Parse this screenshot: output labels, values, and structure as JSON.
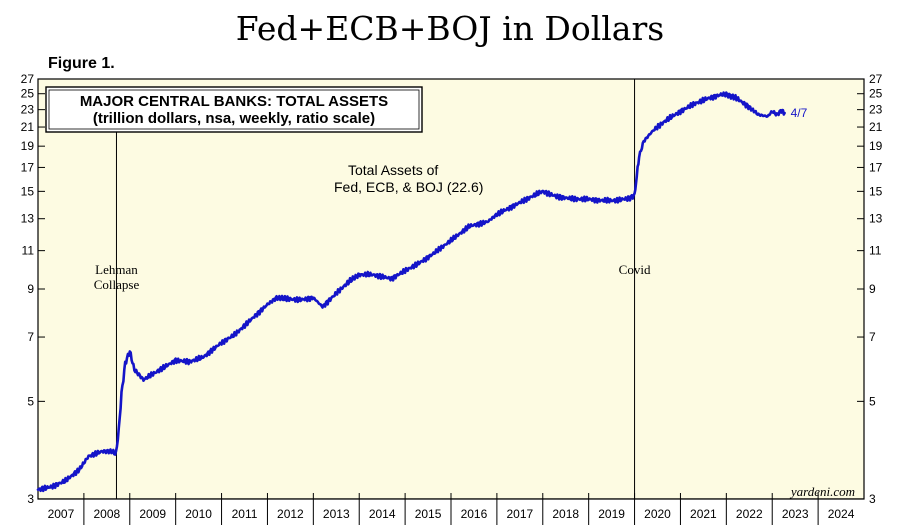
{
  "page": {
    "headline": "Fed+ECB+BOJ in Dollars",
    "figure_label": "Figure 1."
  },
  "chart_data": {
    "type": "line",
    "title": "MAJOR CENTRAL BANKS: TOTAL ASSETS",
    "subtitle": "(trillion dollars, nsa, weekly, ratio scale)",
    "y_scale": "log",
    "ylim": [
      3,
      27
    ],
    "yticks": [
      "3",
      "5",
      "7",
      "9",
      "11",
      "13",
      "15",
      "17",
      "19",
      "21",
      "23",
      "25",
      "27"
    ],
    "xlim": [
      2007,
      2025
    ],
    "xtick_labels": [
      "2007",
      "2008",
      "2009",
      "2010",
      "2011",
      "2012",
      "2013",
      "2014",
      "2015",
      "2016",
      "2017",
      "2018",
      "2019",
      "2020",
      "2021",
      "2022",
      "2023",
      "2024"
    ],
    "grid": false,
    "background": "#fdfbe2",
    "series": [
      {
        "name": "Total Assets of Fed, ECB, & BOJ",
        "color": "#1414c8",
        "x": [
          2007.0,
          2007.3,
          2007.6,
          2007.9,
          2008.1,
          2008.4,
          2008.6,
          2008.7,
          2008.76,
          2008.82,
          2008.9,
          2009.0,
          2009.1,
          2009.3,
          2009.6,
          2010.0,
          2010.3,
          2010.6,
          2011.0,
          2011.3,
          2011.6,
          2012.0,
          2012.2,
          2012.4,
          2012.7,
          2013.0,
          2013.2,
          2013.5,
          2013.8,
          2014.0,
          2014.3,
          2014.7,
          2015.0,
          2015.3,
          2015.6,
          2016.0,
          2016.4,
          2016.8,
          2017.0,
          2017.3,
          2017.7,
          2018.0,
          2018.3,
          2018.7,
          2019.0,
          2019.3,
          2019.6,
          2019.9,
          2020.0,
          2020.05,
          2020.1,
          2020.2,
          2020.4,
          2020.7,
          2021.0,
          2021.3,
          2021.6,
          2021.9,
          2022.0,
          2022.2,
          2022.5,
          2022.7,
          2022.9,
          2023.0,
          2023.1,
          2023.2,
          2023.27
        ],
        "values": [
          3.15,
          3.2,
          3.3,
          3.5,
          3.75,
          3.85,
          3.85,
          3.8,
          4.3,
          5.2,
          6.1,
          6.5,
          5.9,
          5.6,
          5.85,
          6.2,
          6.15,
          6.3,
          6.8,
          7.1,
          7.6,
          8.3,
          8.6,
          8.55,
          8.5,
          8.6,
          8.2,
          8.8,
          9.4,
          9.7,
          9.7,
          9.5,
          9.9,
          10.3,
          10.8,
          11.6,
          12.5,
          12.8,
          13.3,
          13.8,
          14.5,
          15.0,
          14.6,
          14.4,
          14.4,
          14.3,
          14.3,
          14.5,
          14.7,
          16.3,
          18.0,
          19.5,
          20.6,
          21.8,
          22.8,
          23.7,
          24.4,
          24.9,
          24.9,
          24.5,
          23.3,
          22.4,
          22.2,
          22.8,
          22.4,
          22.9,
          22.6
        ]
      }
    ],
    "annotations": [
      {
        "id": "lehman",
        "x": 2008.71,
        "line1": "Lehman",
        "line2": "Collapse"
      },
      {
        "id": "covid",
        "x": 2020.0,
        "line1": "Covid"
      }
    ],
    "series_label": {
      "line1": "Total Assets of",
      "line2": "Fed, ECB, & BOJ (22.6)"
    },
    "end_label": "4/7",
    "source": "yardeni.com"
  }
}
